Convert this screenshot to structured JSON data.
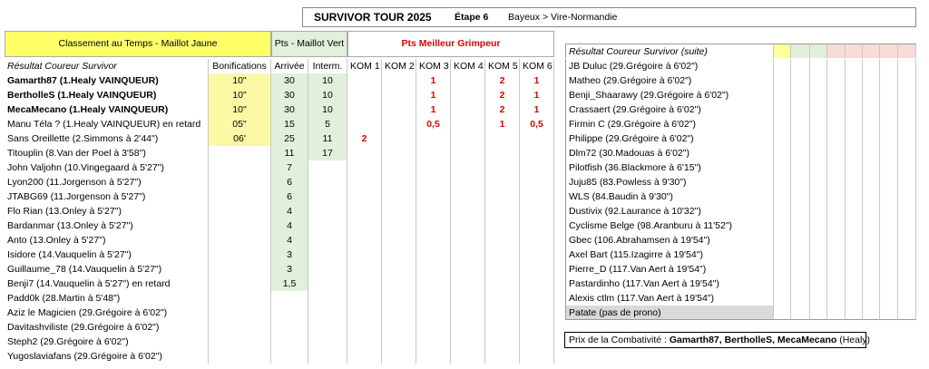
{
  "header": {
    "title": "SURVIVOR TOUR 2025",
    "stage": "Étape 6",
    "route": "Bayeux > Vire-Normandie"
  },
  "left_table": {
    "group_headers": [
      "Classement au Temps - Maillot Jaune",
      "Pts - Maillot Vert",
      "Pts Meilleur Grimpeur"
    ],
    "columns": [
      "Résultat  Coureur Survivor",
      "Bonifications",
      "Arrivée",
      "Interm.",
      "KOM 1",
      "KOM 2",
      "KOM 3",
      "KOM 4",
      "KOM 5",
      "KOM 6"
    ],
    "rows": [
      [
        "Gamarth87 (1.Healy VAINQUEUR)",
        "10\"",
        "30",
        "10",
        null,
        null,
        "1",
        null,
        "2",
        "1"
      ],
      [
        "BertholleS (1.Healy VAINQUEUR)",
        "10\"",
        "30",
        "10",
        null,
        null,
        "1",
        null,
        "2",
        "1"
      ],
      [
        "MecaMecano (1.Healy VAINQUEUR)",
        "10\"",
        "30",
        "10",
        null,
        null,
        "1",
        null,
        "2",
        "1"
      ],
      [
        "Manu Téla ? (1.Healy VAINQUEUR) en retard",
        "05\"",
        "15",
        "5",
        null,
        null,
        "0,5",
        null,
        "1",
        "0,5"
      ],
      [
        "Sans Oreillette (2.Simmons à 2'44\")",
        "06'",
        "25",
        "11",
        "2",
        null,
        null,
        null,
        null,
        null
      ],
      [
        "Titouplin (8.Van der Poel à 3'58\")",
        null,
        "11",
        "17",
        null,
        null,
        null,
        null,
        null,
        null
      ],
      [
        "John Valjohn (10.Vingegaard à 5'27\")",
        null,
        "7",
        null,
        null,
        null,
        null,
        null,
        null,
        null
      ],
      [
        "Lyon200 (11.Jorgenson à 5'27\")",
        null,
        "6",
        null,
        null,
        null,
        null,
        null,
        null,
        null
      ],
      [
        "JTABG69 (11.Jorgenson à 5'27\")",
        null,
        "6",
        null,
        null,
        null,
        null,
        null,
        null,
        null
      ],
      [
        "Flo Rian (13.Onley à 5'27\")",
        null,
        "4",
        null,
        null,
        null,
        null,
        null,
        null,
        null
      ],
      [
        "Bardanmar (13.Onley à 5'27\")",
        null,
        "4",
        null,
        null,
        null,
        null,
        null,
        null,
        null
      ],
      [
        "Anto (13.Onley à 5'27\")",
        null,
        "4",
        null,
        null,
        null,
        null,
        null,
        null,
        null
      ],
      [
        "Isidore (14.Vauquelin à 5'27\")",
        null,
        "3",
        null,
        null,
        null,
        null,
        null,
        null,
        null
      ],
      [
        "Guillaume_78 (14.Vauquelin à 5'27\")",
        null,
        "3",
        null,
        null,
        null,
        null,
        null,
        null,
        null
      ],
      [
        "Benji7 (14.Vauquelin à 5'27\") en retard",
        null,
        "1,5",
        null,
        null,
        null,
        null,
        null,
        null,
        null
      ],
      [
        "Padd0k (28.Martin à 5'48\")",
        null,
        null,
        null,
        null,
        null,
        null,
        null,
        null,
        null
      ],
      [
        "Aziz le Magicien (29.Grégoire à 6'02\")",
        null,
        null,
        null,
        null,
        null,
        null,
        null,
        null,
        null
      ],
      [
        "Davitashviliste (29.Grégoire à 6'02\")",
        null,
        null,
        null,
        null,
        null,
        null,
        null,
        null,
        null
      ],
      [
        "Steph2 (29.Grégoire à 6'02\")",
        null,
        null,
        null,
        null,
        null,
        null,
        null,
        null,
        null
      ],
      [
        "Yugoslaviafans (29.Grégoire à 6'02\")",
        null,
        null,
        null,
        null,
        null,
        null,
        null,
        null,
        null
      ]
    ]
  },
  "right_table": {
    "header": "Résultat  Coureur Survivor (suite)",
    "rows": [
      "JB Duluc (29.Grégoire à 6'02\")",
      "Matheo (29.Grégoire à 6'02\")",
      "Benji_Shaarawy (29.Grégoire à 6'02\")",
      "Crassaert (29.Grégoire à 6'02\")",
      "Firmin C (29.Grégoire à 6'02\")",
      "Philippe (29.Grégoire à 6'02\")",
      "Dlm72 (30.Madouas à 6'02\")",
      "Pilotfish (36.Blackmore à 6'15\")",
      "Juju85 (83.Powless à 9'30\")",
      "WLS (84.Baudin à 9'30\")",
      "Dustivix (92.Laurance à 10'32\")",
      "Cyclisme Belge (98.Aranburu à 11'52\")",
      "Gbec (106.Abrahamsen à 19'54\")",
      "Axel Bart (115.Izagirre à 19'54\")",
      "Pierre_D (117.Van Aert à 19'54\")",
      "Pastardinho (117.Van Aert à 19'54\")",
      "Alexis ctlm (117.Van Aert à 19'54\")",
      "Patate (pas de prono)"
    ]
  },
  "note": {
    "label": "Prix de la Combativité : ",
    "winners": "Gamarth87, BertholleS, MecaMecano",
    "suffix": " (Healy)"
  }
}
